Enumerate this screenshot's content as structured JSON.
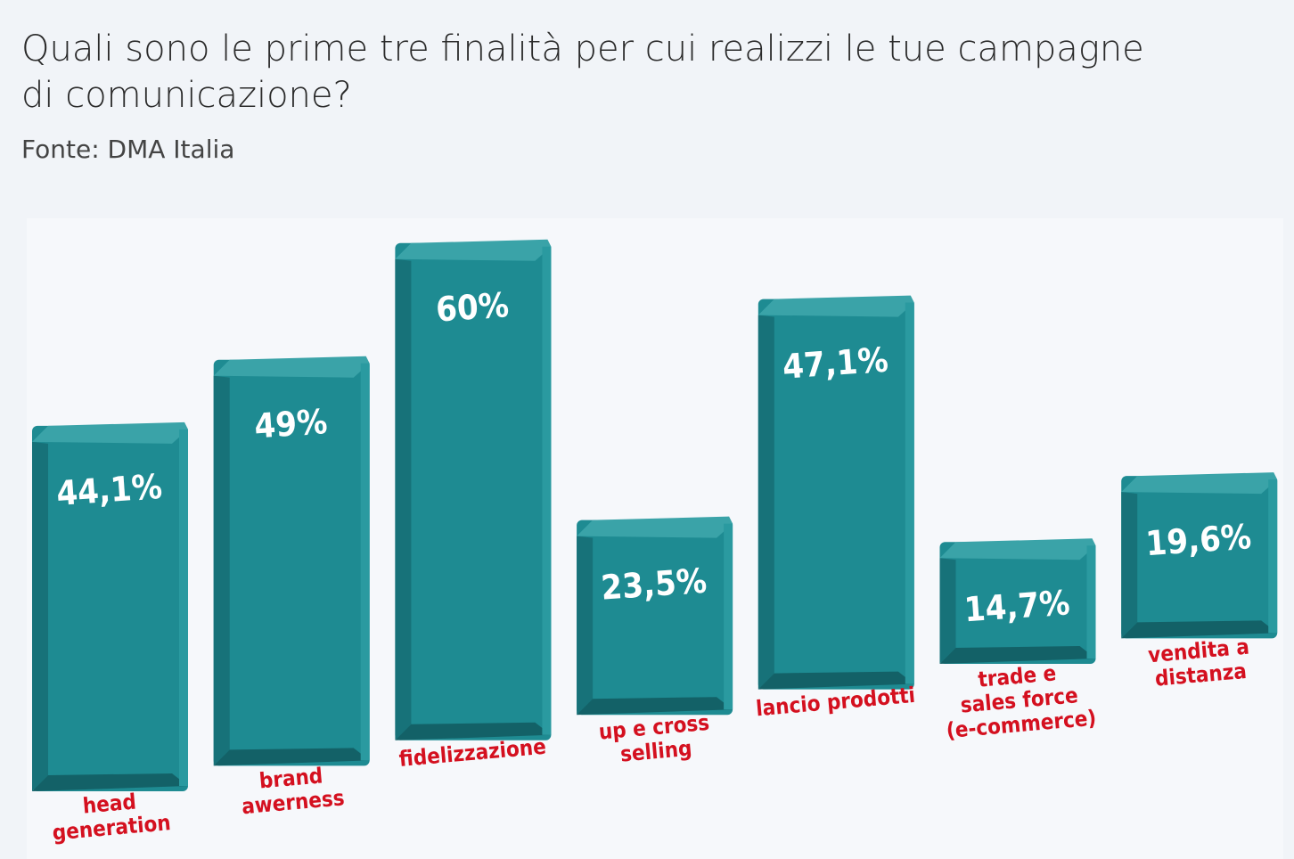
{
  "chart_data": {
    "type": "bar",
    "title": "Quali sono le prime tre finalità per cui realizzi le tue campagne\ndi comunicazione?",
    "subtitle": "Fonte: DMA Italia",
    "categories": [
      "head\ngeneration",
      "brand\nawerness",
      "fidelizzazione",
      "up e cross\nselling",
      "lancio prodotti",
      "trade e\nsales force\n(e-commerce)",
      "vendita a\ndistanza"
    ],
    "values": [
      44.1,
      49,
      60,
      23.5,
      47.1,
      14.7,
      19.6
    ],
    "value_labels": [
      "44,1%",
      "49%",
      "60%",
      "23,5%",
      "47,1%",
      "14,7%",
      "19,6%"
    ],
    "color": "#1e8b92",
    "label_color": "#d4101f"
  }
}
